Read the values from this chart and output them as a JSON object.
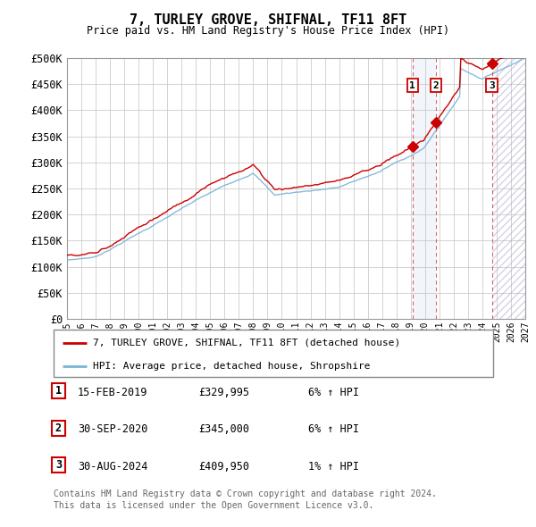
{
  "title": "7, TURLEY GROVE, SHIFNAL, TF11 8FT",
  "subtitle": "Price paid vs. HM Land Registry's House Price Index (HPI)",
  "ylim": [
    0,
    500000
  ],
  "yticks": [
    0,
    50000,
    100000,
    150000,
    200000,
    250000,
    300000,
    350000,
    400000,
    450000,
    500000
  ],
  "ytick_labels": [
    "£0",
    "£50K",
    "£100K",
    "£150K",
    "£200K",
    "£250K",
    "£300K",
    "£350K",
    "£400K",
    "£450K",
    "£500K"
  ],
  "hpi_color": "#7ab4d8",
  "price_color": "#cc0000",
  "background_color": "#ffffff",
  "grid_color": "#cccccc",
  "legend_label_price": "7, TURLEY GROVE, SHIFNAL, TF11 8FT (detached house)",
  "legend_label_hpi": "HPI: Average price, detached house, Shropshire",
  "transactions": [
    {
      "num": 1,
      "date": "15-FEB-2019",
      "price": 329995,
      "pct": "6%",
      "dir": "↑",
      "x_year": 2019.12
    },
    {
      "num": 2,
      "date": "30-SEP-2020",
      "price": 345000,
      "pct": "6%",
      "dir": "↑",
      "x_year": 2020.75
    },
    {
      "num": 3,
      "date": "30-AUG-2024",
      "price": 409950,
      "pct": "1%",
      "dir": "↑",
      "x_year": 2024.67
    }
  ],
  "footer1": "Contains HM Land Registry data © Crown copyright and database right 2024.",
  "footer2": "This data is licensed under the Open Government Licence v3.0.",
  "xmin": 1995,
  "xmax": 2027,
  "base_hpi": 78000,
  "base_price": 82000
}
